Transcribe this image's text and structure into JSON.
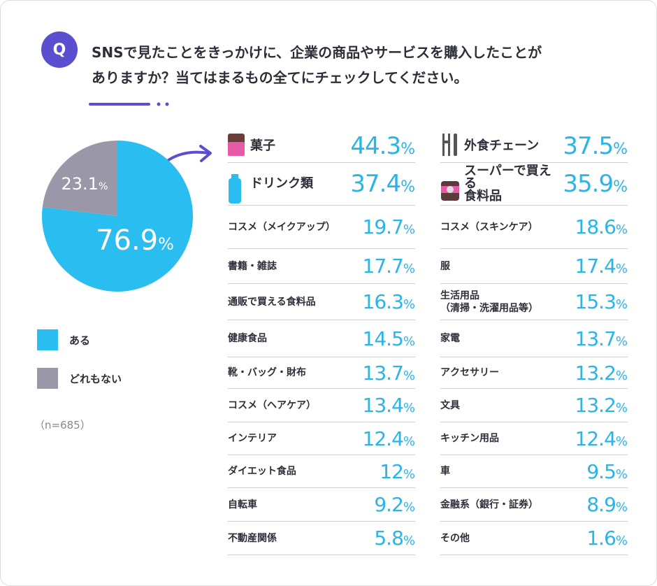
{
  "question": "SNSで見たことをきっかけに、企業の商品やサービスを購入したことが\nありますか？当てはまるもの全てにチェックしてください。",
  "chart_data": {
    "type": "pie",
    "categories": [
      "ある",
      "どれもない"
    ],
    "values": [
      76.9,
      23.1
    ],
    "value_labels": [
      "76.9%",
      "23.1%"
    ],
    "colors": [
      "#29bdf0",
      "#9a98a8"
    ]
  },
  "note": "（n=685）",
  "list_left": [
    {
      "label": "菓子",
      "value": "44.3%"
    },
    {
      "label": "ドリンク類",
      "value": "37.4%"
    },
    {
      "label": "コスメ（メイクアップ）",
      "value": "19.7%"
    },
    {
      "label": "書籍・雑誌",
      "value": "17.7%"
    },
    {
      "label": "通販で買える食料品",
      "value": "16.3%"
    },
    {
      "label": "健康食品",
      "value": "14.5%"
    },
    {
      "label": "靴・バッグ・財布",
      "value": "13.7%"
    },
    {
      "label": "コスメ（ヘアケア）",
      "value": "13.4%"
    },
    {
      "label": "インテリア",
      "value": "12.4%"
    },
    {
      "label": "ダイエット食品",
      "value": "12%"
    },
    {
      "label": "自転車",
      "value": "9.2%"
    },
    {
      "label": "不動産関係",
      "value": "5.8%"
    }
  ],
  "list_right": [
    {
      "label": "外食チェーン",
      "value": "37.5%"
    },
    {
      "label": "スーパーで買える\n食料品",
      "value": "35.9%"
    },
    {
      "label": "コスメ（スキンケア）",
      "value": "18.6%"
    },
    {
      "label": "服",
      "value": "17.4%"
    },
    {
      "label": "生活用品\n（清掃・洗濯用品等）",
      "value": "15.3%"
    },
    {
      "label": "家電",
      "value": "13.7%"
    },
    {
      "label": "アクセサリー",
      "value": "13.2%"
    },
    {
      "label": "文具",
      "value": "13.2%"
    },
    {
      "label": "キッチン用品",
      "value": "12.4%"
    },
    {
      "label": "車",
      "value": "9.5%"
    },
    {
      "label": "金融系（銀行・証券）",
      "value": "8.9%"
    },
    {
      "label": "その他",
      "value": "1.6%"
    }
  ]
}
